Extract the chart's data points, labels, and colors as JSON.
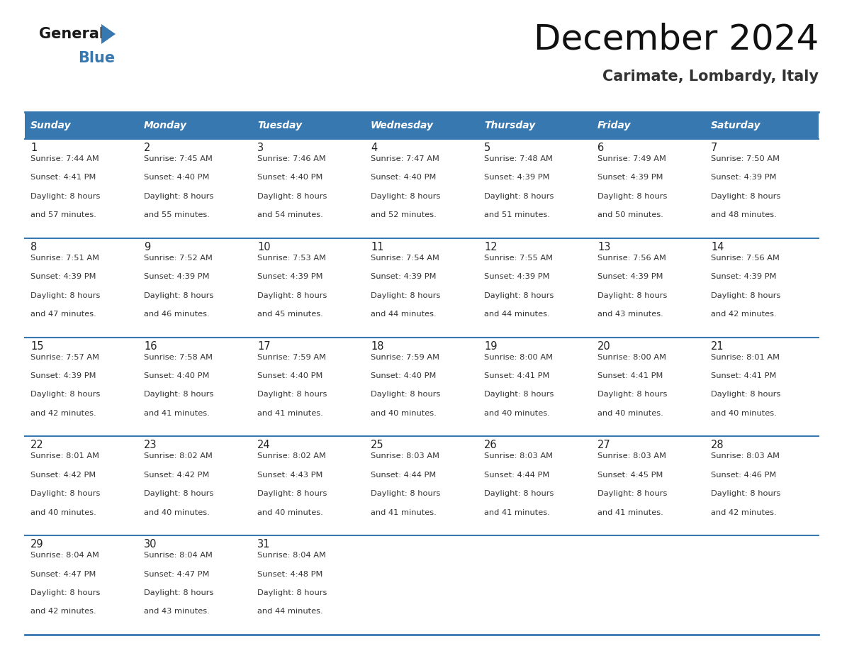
{
  "title": "December 2024",
  "subtitle": "Carimate, Lombardy, Italy",
  "header_color": "#3778B0",
  "header_text_color": "#FFFFFF",
  "cell_bg": "#FFFFFF",
  "border_color": "#3778B0",
  "separator_color": "#3778B0",
  "days_of_week": [
    "Sunday",
    "Monday",
    "Tuesday",
    "Wednesday",
    "Thursday",
    "Friday",
    "Saturday"
  ],
  "weeks": [
    [
      {
        "day": "1",
        "sunrise": "7:44 AM",
        "sunset": "4:41 PM",
        "daylight1": "Daylight: 8 hours",
        "daylight2": "and 57 minutes."
      },
      {
        "day": "2",
        "sunrise": "7:45 AM",
        "sunset": "4:40 PM",
        "daylight1": "Daylight: 8 hours",
        "daylight2": "and 55 minutes."
      },
      {
        "day": "3",
        "sunrise": "7:46 AM",
        "sunset": "4:40 PM",
        "daylight1": "Daylight: 8 hours",
        "daylight2": "and 54 minutes."
      },
      {
        "day": "4",
        "sunrise": "7:47 AM",
        "sunset": "4:40 PM",
        "daylight1": "Daylight: 8 hours",
        "daylight2": "and 52 minutes."
      },
      {
        "day": "5",
        "sunrise": "7:48 AM",
        "sunset": "4:39 PM",
        "daylight1": "Daylight: 8 hours",
        "daylight2": "and 51 minutes."
      },
      {
        "day": "6",
        "sunrise": "7:49 AM",
        "sunset": "4:39 PM",
        "daylight1": "Daylight: 8 hours",
        "daylight2": "and 50 minutes."
      },
      {
        "day": "7",
        "sunrise": "7:50 AM",
        "sunset": "4:39 PM",
        "daylight1": "Daylight: 8 hours",
        "daylight2": "and 48 minutes."
      }
    ],
    [
      {
        "day": "8",
        "sunrise": "7:51 AM",
        "sunset": "4:39 PM",
        "daylight1": "Daylight: 8 hours",
        "daylight2": "and 47 minutes."
      },
      {
        "day": "9",
        "sunrise": "7:52 AM",
        "sunset": "4:39 PM",
        "daylight1": "Daylight: 8 hours",
        "daylight2": "and 46 minutes."
      },
      {
        "day": "10",
        "sunrise": "7:53 AM",
        "sunset": "4:39 PM",
        "daylight1": "Daylight: 8 hours",
        "daylight2": "and 45 minutes."
      },
      {
        "day": "11",
        "sunrise": "7:54 AM",
        "sunset": "4:39 PM",
        "daylight1": "Daylight: 8 hours",
        "daylight2": "and 44 minutes."
      },
      {
        "day": "12",
        "sunrise": "7:55 AM",
        "sunset": "4:39 PM",
        "daylight1": "Daylight: 8 hours",
        "daylight2": "and 44 minutes."
      },
      {
        "day": "13",
        "sunrise": "7:56 AM",
        "sunset": "4:39 PM",
        "daylight1": "Daylight: 8 hours",
        "daylight2": "and 43 minutes."
      },
      {
        "day": "14",
        "sunrise": "7:56 AM",
        "sunset": "4:39 PM",
        "daylight1": "Daylight: 8 hours",
        "daylight2": "and 42 minutes."
      }
    ],
    [
      {
        "day": "15",
        "sunrise": "7:57 AM",
        "sunset": "4:39 PM",
        "daylight1": "Daylight: 8 hours",
        "daylight2": "and 42 minutes."
      },
      {
        "day": "16",
        "sunrise": "7:58 AM",
        "sunset": "4:40 PM",
        "daylight1": "Daylight: 8 hours",
        "daylight2": "and 41 minutes."
      },
      {
        "day": "17",
        "sunrise": "7:59 AM",
        "sunset": "4:40 PM",
        "daylight1": "Daylight: 8 hours",
        "daylight2": "and 41 minutes."
      },
      {
        "day": "18",
        "sunrise": "7:59 AM",
        "sunset": "4:40 PM",
        "daylight1": "Daylight: 8 hours",
        "daylight2": "and 40 minutes."
      },
      {
        "day": "19",
        "sunrise": "8:00 AM",
        "sunset": "4:41 PM",
        "daylight1": "Daylight: 8 hours",
        "daylight2": "and 40 minutes."
      },
      {
        "day": "20",
        "sunrise": "8:00 AM",
        "sunset": "4:41 PM",
        "daylight1": "Daylight: 8 hours",
        "daylight2": "and 40 minutes."
      },
      {
        "day": "21",
        "sunrise": "8:01 AM",
        "sunset": "4:41 PM",
        "daylight1": "Daylight: 8 hours",
        "daylight2": "and 40 minutes."
      }
    ],
    [
      {
        "day": "22",
        "sunrise": "8:01 AM",
        "sunset": "4:42 PM",
        "daylight1": "Daylight: 8 hours",
        "daylight2": "and 40 minutes."
      },
      {
        "day": "23",
        "sunrise": "8:02 AM",
        "sunset": "4:42 PM",
        "daylight1": "Daylight: 8 hours",
        "daylight2": "and 40 minutes."
      },
      {
        "day": "24",
        "sunrise": "8:02 AM",
        "sunset": "4:43 PM",
        "daylight1": "Daylight: 8 hours",
        "daylight2": "and 40 minutes."
      },
      {
        "day": "25",
        "sunrise": "8:03 AM",
        "sunset": "4:44 PM",
        "daylight1": "Daylight: 8 hours",
        "daylight2": "and 41 minutes."
      },
      {
        "day": "26",
        "sunrise": "8:03 AM",
        "sunset": "4:44 PM",
        "daylight1": "Daylight: 8 hours",
        "daylight2": "and 41 minutes."
      },
      {
        "day": "27",
        "sunrise": "8:03 AM",
        "sunset": "4:45 PM",
        "daylight1": "Daylight: 8 hours",
        "daylight2": "and 41 minutes."
      },
      {
        "day": "28",
        "sunrise": "8:03 AM",
        "sunset": "4:46 PM",
        "daylight1": "Daylight: 8 hours",
        "daylight2": "and 42 minutes."
      }
    ],
    [
      {
        "day": "29",
        "sunrise": "8:04 AM",
        "sunset": "4:47 PM",
        "daylight1": "Daylight: 8 hours",
        "daylight2": "and 42 minutes."
      },
      {
        "day": "30",
        "sunrise": "8:04 AM",
        "sunset": "4:47 PM",
        "daylight1": "Daylight: 8 hours",
        "daylight2": "and 43 minutes."
      },
      {
        "day": "31",
        "sunrise": "8:04 AM",
        "sunset": "4:48 PM",
        "daylight1": "Daylight: 8 hours",
        "daylight2": "and 44 minutes."
      },
      null,
      null,
      null,
      null
    ]
  ],
  "logo_general_color": "#1a1a1a",
  "logo_blue_color": "#3778B0",
  "logo_triangle_color": "#3778B0"
}
